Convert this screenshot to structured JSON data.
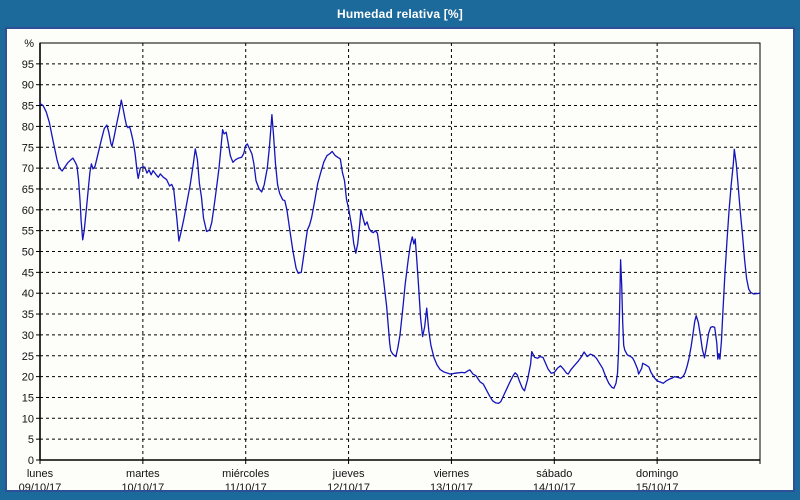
{
  "header": {
    "title": "Humedad relativa [%]"
  },
  "colors": {
    "frame_bg": "#1c6a9c",
    "panel_border": "#2d4f96",
    "panel_bg": "#fdfdfa",
    "plot_border": "#000000",
    "grid": "#000000",
    "line": "#1414bb",
    "title_text": "#ffffff",
    "label_text": "#111111"
  },
  "chart_data": {
    "type": "line",
    "title": "Humedad relativa [%]",
    "ylabel": "%",
    "y_top_label": "%",
    "ylim": [
      0,
      100
    ],
    "y_ticks": [
      0,
      5,
      10,
      15,
      20,
      25,
      30,
      35,
      40,
      45,
      50,
      55,
      60,
      65,
      70,
      75,
      80,
      85,
      90,
      95
    ],
    "grid": "dashed",
    "legend": "none",
    "x_axis": {
      "days": [
        {
          "name": "lunes",
          "date": "09/10/17"
        },
        {
          "name": "martes",
          "date": "10/10/17"
        },
        {
          "name": "miércoles",
          "date": "11/10/17"
        },
        {
          "name": "jueves",
          "date": "12/10/17"
        },
        {
          "name": "viernes",
          "date": "13/10/17"
        },
        {
          "name": "sábado",
          "date": "14/10/17"
        },
        {
          "name": "domingo",
          "date": "15/10/17"
        }
      ]
    },
    "series": [
      {
        "name": "Humedad relativa",
        "unit": "%",
        "points_day_value": [
          [
            0.0,
            85.5
          ],
          [
            0.03,
            85.0
          ],
          [
            0.06,
            83.5
          ],
          [
            0.09,
            81.0
          ],
          [
            0.115,
            78.0
          ],
          [
            0.14,
            75.0
          ],
          [
            0.165,
            72.0
          ],
          [
            0.19,
            70.0
          ],
          [
            0.215,
            69.3
          ],
          [
            0.24,
            70.2
          ],
          [
            0.27,
            71.3
          ],
          [
            0.3,
            72.0
          ],
          [
            0.32,
            72.4
          ],
          [
            0.345,
            71.3
          ],
          [
            0.36,
            70.5
          ],
          [
            0.375,
            67.0
          ],
          [
            0.39,
            62.0
          ],
          [
            0.4,
            57.5
          ],
          [
            0.415,
            52.8
          ],
          [
            0.43,
            55.0
          ],
          [
            0.45,
            60.0
          ],
          [
            0.47,
            65.0
          ],
          [
            0.485,
            69.0
          ],
          [
            0.5,
            71.0
          ],
          [
            0.515,
            69.8
          ],
          [
            0.535,
            70.4
          ],
          [
            0.555,
            72.5
          ],
          [
            0.575,
            74.5
          ],
          [
            0.6,
            77.1
          ],
          [
            0.625,
            79.5
          ],
          [
            0.65,
            80.3
          ],
          [
            0.67,
            78.5
          ],
          [
            0.69,
            75.8
          ],
          [
            0.7,
            75.2
          ],
          [
            0.72,
            77.5
          ],
          [
            0.745,
            80.5
          ],
          [
            0.77,
            83.5
          ],
          [
            0.79,
            86.3
          ],
          [
            0.81,
            84.0
          ],
          [
            0.825,
            82.0
          ],
          [
            0.84,
            80.3
          ],
          [
            0.855,
            79.7
          ],
          [
            0.87,
            80.0
          ],
          [
            0.885,
            78.7
          ],
          [
            0.905,
            76.5
          ],
          [
            0.925,
            73.5
          ],
          [
            0.945,
            69.0
          ],
          [
            0.955,
            67.5
          ],
          [
            0.975,
            70.0
          ],
          [
            1.0,
            70.3
          ],
          [
            1.02,
            70.2
          ],
          [
            1.04,
            68.8
          ],
          [
            1.06,
            69.6
          ],
          [
            1.08,
            68.4
          ],
          [
            1.1,
            69.4
          ],
          [
            1.13,
            68.4
          ],
          [
            1.15,
            67.8
          ],
          [
            1.17,
            68.6
          ],
          [
            1.2,
            67.8
          ],
          [
            1.23,
            67.3
          ],
          [
            1.26,
            65.7
          ],
          [
            1.28,
            66.1
          ],
          [
            1.3,
            65.0
          ],
          [
            1.33,
            58.0
          ],
          [
            1.35,
            52.5
          ],
          [
            1.37,
            54.5
          ],
          [
            1.4,
            58.0
          ],
          [
            1.43,
            62.0
          ],
          [
            1.46,
            66.0
          ],
          [
            1.49,
            71.0
          ],
          [
            1.51,
            74.6
          ],
          [
            1.53,
            72.0
          ],
          [
            1.55,
            66.3
          ],
          [
            1.57,
            63.0
          ],
          [
            1.59,
            58.0
          ],
          [
            1.62,
            54.8
          ],
          [
            1.65,
            55.2
          ],
          [
            1.67,
            57.0
          ],
          [
            1.7,
            62.3
          ],
          [
            1.72,
            66.0
          ],
          [
            1.74,
            70.0
          ],
          [
            1.76,
            75.0
          ],
          [
            1.775,
            79.2
          ],
          [
            1.79,
            78.2
          ],
          [
            1.81,
            78.6
          ],
          [
            1.83,
            76.0
          ],
          [
            1.85,
            73.0
          ],
          [
            1.875,
            71.4
          ],
          [
            1.9,
            72.0
          ],
          [
            1.93,
            72.4
          ],
          [
            1.96,
            72.6
          ],
          [
            1.98,
            73.5
          ],
          [
            2.0,
            75.4
          ],
          [
            2.015,
            75.8
          ],
          [
            2.04,
            74.5
          ],
          [
            2.06,
            73.4
          ],
          [
            2.08,
            71.0
          ],
          [
            2.1,
            67.0
          ],
          [
            2.13,
            65.0
          ],
          [
            2.155,
            64.3
          ],
          [
            2.18,
            66.0
          ],
          [
            2.21,
            70.0
          ],
          [
            2.23,
            75.0
          ],
          [
            2.255,
            82.8
          ],
          [
            2.27,
            78.0
          ],
          [
            2.29,
            71.0
          ],
          [
            2.31,
            66.0
          ],
          [
            2.33,
            63.9
          ],
          [
            2.36,
            62.4
          ],
          [
            2.38,
            62.2
          ],
          [
            2.4,
            60.0
          ],
          [
            2.43,
            55.0
          ],
          [
            2.46,
            50.0
          ],
          [
            2.49,
            46.0
          ],
          [
            2.51,
            44.8
          ],
          [
            2.54,
            45.0
          ],
          [
            2.57,
            50.0
          ],
          [
            2.6,
            55.2
          ],
          [
            2.62,
            56.3
          ],
          [
            2.64,
            58.0
          ],
          [
            2.67,
            62.0
          ],
          [
            2.7,
            66.3
          ],
          [
            2.73,
            69.0
          ],
          [
            2.76,
            71.5
          ],
          [
            2.79,
            73.0
          ],
          [
            2.82,
            73.5
          ],
          [
            2.84,
            74.0
          ],
          [
            2.87,
            73.0
          ],
          [
            2.9,
            72.5
          ],
          [
            2.92,
            72.2
          ],
          [
            2.94,
            69.0
          ],
          [
            2.96,
            67.0
          ],
          [
            2.98,
            62.5
          ],
          [
            3.0,
            60.3
          ],
          [
            3.03,
            56.0
          ],
          [
            3.05,
            52.0
          ],
          [
            3.07,
            49.6
          ],
          [
            3.09,
            52.0
          ],
          [
            3.11,
            57.0
          ],
          [
            3.12,
            60.0
          ],
          [
            3.14,
            58.0
          ],
          [
            3.16,
            56.3
          ],
          [
            3.18,
            57.1
          ],
          [
            3.2,
            55.5
          ],
          [
            3.22,
            54.8
          ],
          [
            3.24,
            54.5
          ],
          [
            3.26,
            55.0
          ],
          [
            3.28,
            54.4
          ],
          [
            3.3,
            51.0
          ],
          [
            3.34,
            43.3
          ],
          [
            3.37,
            36.9
          ],
          [
            3.4,
            28.0
          ],
          [
            3.41,
            26.2
          ],
          [
            3.43,
            25.4
          ],
          [
            3.46,
            24.8
          ],
          [
            3.48,
            27.0
          ],
          [
            3.5,
            30.0
          ],
          [
            3.53,
            37.0
          ],
          [
            3.55,
            42.0
          ],
          [
            3.58,
            48.0
          ],
          [
            3.6,
            51.5
          ],
          [
            3.62,
            53.5
          ],
          [
            3.635,
            51.8
          ],
          [
            3.648,
            53.0
          ],
          [
            3.66,
            49.0
          ],
          [
            3.68,
            42.0
          ],
          [
            3.7,
            34.0
          ],
          [
            3.72,
            29.6
          ],
          [
            3.74,
            32.0
          ],
          [
            3.76,
            36.4
          ],
          [
            3.78,
            31.0
          ],
          [
            3.8,
            27.5
          ],
          [
            3.83,
            24.6
          ],
          [
            3.86,
            22.8
          ],
          [
            3.89,
            21.7
          ],
          [
            3.92,
            21.2
          ],
          [
            3.95,
            20.9
          ],
          [
            3.98,
            20.7
          ],
          [
            4.0,
            20.6
          ],
          [
            4.03,
            20.8
          ],
          [
            4.07,
            20.9
          ],
          [
            4.1,
            21.0
          ],
          [
            4.13,
            20.9
          ],
          [
            4.16,
            21.4
          ],
          [
            4.18,
            21.6
          ],
          [
            4.21,
            20.6
          ],
          [
            4.24,
            20.2
          ],
          [
            4.26,
            19.4
          ],
          [
            4.28,
            18.7
          ],
          [
            4.31,
            18.2
          ],
          [
            4.34,
            16.8
          ],
          [
            4.37,
            15.4
          ],
          [
            4.4,
            14.2
          ],
          [
            4.43,
            13.7
          ],
          [
            4.46,
            13.6
          ],
          [
            4.48,
            14.0
          ],
          [
            4.51,
            15.6
          ],
          [
            4.54,
            17.2
          ],
          [
            4.57,
            18.8
          ],
          [
            4.6,
            20.2
          ],
          [
            4.62,
            20.9
          ],
          [
            4.64,
            20.4
          ],
          [
            4.66,
            19.0
          ],
          [
            4.69,
            17.2
          ],
          [
            4.71,
            16.6
          ],
          [
            4.74,
            19.2
          ],
          [
            4.77,
            23.0
          ],
          [
            4.78,
            26.0
          ],
          [
            4.81,
            24.6
          ],
          [
            4.84,
            24.4
          ],
          [
            4.86,
            24.8
          ],
          [
            4.89,
            24.6
          ],
          [
            4.91,
            23.5
          ],
          [
            4.94,
            21.8
          ],
          [
            4.97,
            20.8
          ],
          [
            5.0,
            21.0
          ],
          [
            5.03,
            22.0
          ],
          [
            5.06,
            22.6
          ],
          [
            5.09,
            21.8
          ],
          [
            5.12,
            20.8
          ],
          [
            5.135,
            20.6
          ],
          [
            5.16,
            21.6
          ],
          [
            5.2,
            22.8
          ],
          [
            5.23,
            23.6
          ],
          [
            5.26,
            24.6
          ],
          [
            5.29,
            25.9
          ],
          [
            5.32,
            24.8
          ],
          [
            5.35,
            25.4
          ],
          [
            5.38,
            25.1
          ],
          [
            5.41,
            24.4
          ],
          [
            5.44,
            23.2
          ],
          [
            5.47,
            22.0
          ],
          [
            5.5,
            20.0
          ],
          [
            5.53,
            18.4
          ],
          [
            5.56,
            17.4
          ],
          [
            5.58,
            17.2
          ],
          [
            5.6,
            18.4
          ],
          [
            5.615,
            20.8
          ],
          [
            5.625,
            26.4
          ],
          [
            5.635,
            36.0
          ],
          [
            5.645,
            48.0
          ],
          [
            5.655,
            42.0
          ],
          [
            5.665,
            33.0
          ],
          [
            5.675,
            27.5
          ],
          [
            5.685,
            26.4
          ],
          [
            5.71,
            25.2
          ],
          [
            5.73,
            25.0
          ],
          [
            5.76,
            24.5
          ],
          [
            5.78,
            23.6
          ],
          [
            5.81,
            21.8
          ],
          [
            5.82,
            20.6
          ],
          [
            5.85,
            22.0
          ],
          [
            5.86,
            23.2
          ],
          [
            5.89,
            22.8
          ],
          [
            5.92,
            22.3
          ],
          [
            5.94,
            21.0
          ],
          [
            5.97,
            19.8
          ],
          [
            6.0,
            19.0
          ],
          [
            6.03,
            18.7
          ],
          [
            6.06,
            18.4
          ],
          [
            6.09,
            19.0
          ],
          [
            6.12,
            19.4
          ],
          [
            6.15,
            19.7
          ],
          [
            6.17,
            20.0
          ],
          [
            6.2,
            19.8
          ],
          [
            6.23,
            19.6
          ],
          [
            6.25,
            20.0
          ],
          [
            6.27,
            20.8
          ],
          [
            6.29,
            22.4
          ],
          [
            6.31,
            24.4
          ],
          [
            6.33,
            27.2
          ],
          [
            6.35,
            30.4
          ],
          [
            6.365,
            33.2
          ],
          [
            6.38,
            34.6
          ],
          [
            6.4,
            33.0
          ],
          [
            6.42,
            30.0
          ],
          [
            6.44,
            26.5
          ],
          [
            6.46,
            24.5
          ],
          [
            6.48,
            27.2
          ],
          [
            6.5,
            30.4
          ],
          [
            6.52,
            31.8
          ],
          [
            6.54,
            32.0
          ],
          [
            6.56,
            31.8
          ],
          [
            6.58,
            28.0
          ],
          [
            6.59,
            24.2
          ],
          [
            6.6,
            25.5
          ],
          [
            6.61,
            24.2
          ],
          [
            6.625,
            28.4
          ],
          [
            6.64,
            36.0
          ],
          [
            6.66,
            45.0
          ],
          [
            6.68,
            53.0
          ],
          [
            6.7,
            60.0
          ],
          [
            6.72,
            66.0
          ],
          [
            6.74,
            71.0
          ],
          [
            6.75,
            74.5
          ],
          [
            6.77,
            71.0
          ],
          [
            6.79,
            65.0
          ],
          [
            6.81,
            59.0
          ],
          [
            6.83,
            54.0
          ],
          [
            6.85,
            48.0
          ],
          [
            6.87,
            43.5
          ],
          [
            6.89,
            41.0
          ],
          [
            6.91,
            40.2
          ],
          [
            6.94,
            39.8
          ],
          [
            6.97,
            39.9
          ],
          [
            7.0,
            40.0
          ]
        ]
      }
    ]
  }
}
